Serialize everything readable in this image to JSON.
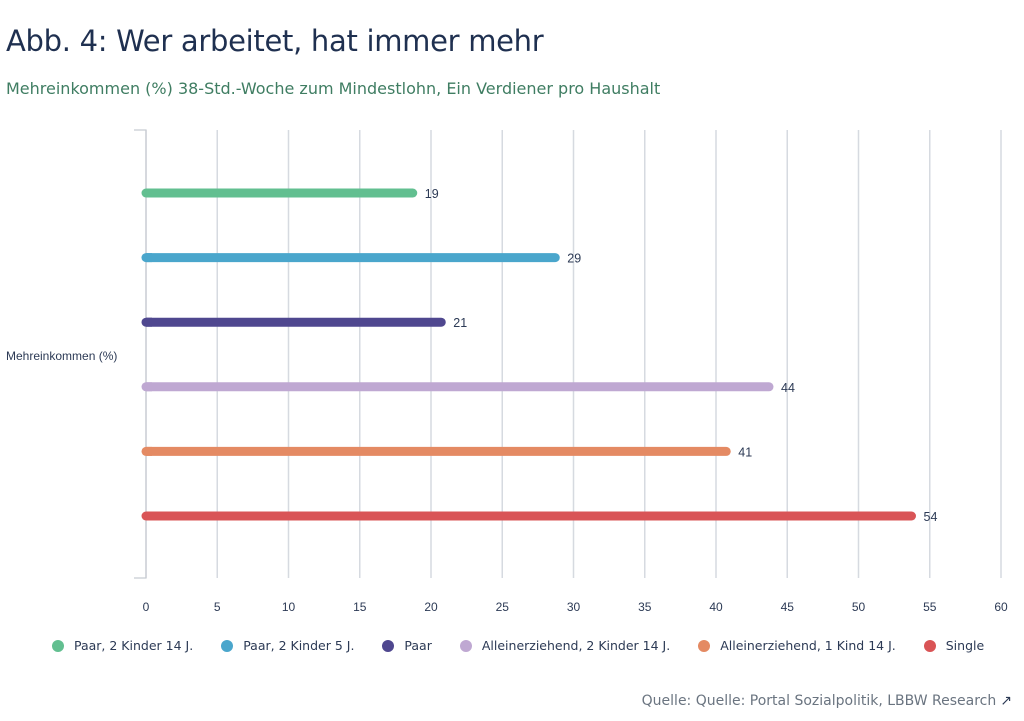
{
  "header": {
    "title": "Abb. 4: Wer arbeitet, hat immer mehr",
    "subtitle": "Mehreinkommen (%) 38-Std.-Woche zum Mindestlohn, Ein Verdiener pro Haushalt"
  },
  "source": {
    "text": "Quelle: Quelle: Portal Sozialpolitik, LBBW Research",
    "icon": "external-link-arrow-icon"
  },
  "chart_data": {
    "type": "bar",
    "orientation": "horizontal",
    "title": "Abb. 4: Wer arbeitet, hat immer mehr",
    "subtitle": "Mehreinkommen (%) 38-Std.-Woche zum Mindestlohn, Ein Verdiener pro Haushalt",
    "categories": [
      "Mehreinkommen (%)"
    ],
    "ylabel": "Mehreinkommen (%)",
    "xlabel": "",
    "xlim": [
      0,
      60
    ],
    "xticks": [
      "0",
      "5",
      "10",
      "15",
      "20",
      "25",
      "30",
      "35",
      "40",
      "45",
      "50",
      "55",
      "60"
    ],
    "grid": true,
    "legend_position": "bottom",
    "series": [
      {
        "name": "Paar, 2 Kinder 14 J.",
        "values": [
          19
        ],
        "color": "#62bf90"
      },
      {
        "name": "Paar, 2 Kinder 5 J.",
        "values": [
          29
        ],
        "color": "#4aa6cc"
      },
      {
        "name": "Paar",
        "values": [
          21
        ],
        "color": "#4f478f"
      },
      {
        "name": "Alleinerziehend, 2 Kinder 14 J.",
        "values": [
          44
        ],
        "color": "#bfa8d2"
      },
      {
        "name": "Alleinerziehend, 1 Kind 14 J.",
        "values": [
          41
        ],
        "color": "#e48a63"
      },
      {
        "name": "Single",
        "values": [
          54
        ],
        "color": "#d95456"
      }
    ]
  }
}
